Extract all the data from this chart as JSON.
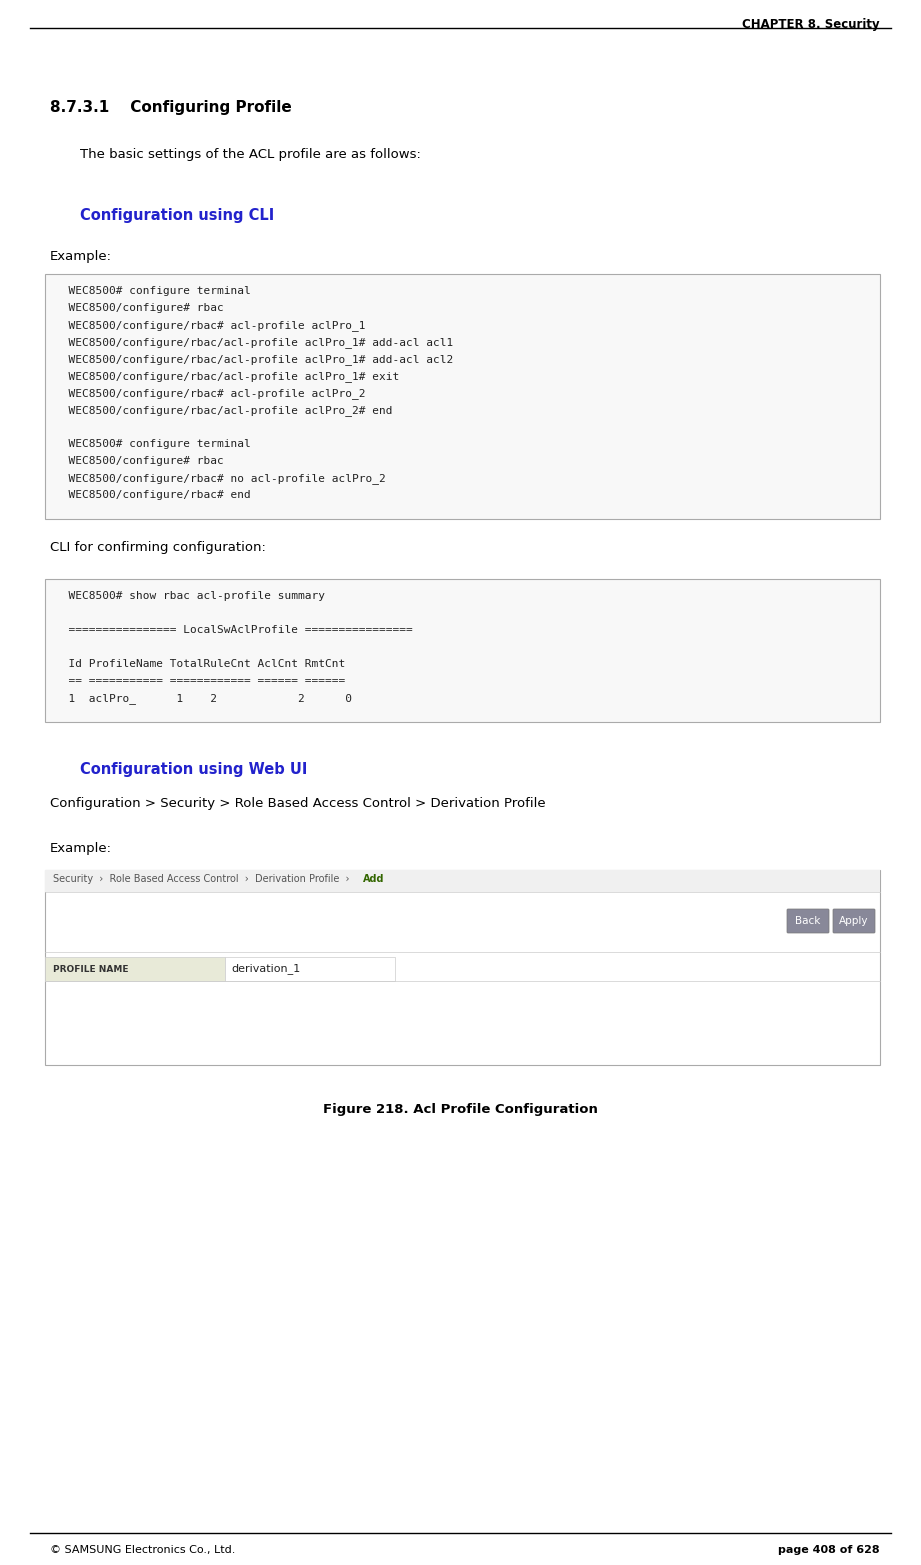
{
  "bg_color": "#ffffff",
  "header_text": "CHAPTER 8. Security",
  "footer_left": "© SAMSUNG Electronics Co., Ltd.",
  "footer_right": "page 408 of 628",
  "section_title": "8.7.3.1    Configuring Profile",
  "section_body": "The basic settings of the ACL profile are as follows:",
  "cli_heading": "Configuration using CLI",
  "cli_heading_color": "#2222cc",
  "example_label": "Example:",
  "cli_box1_lines": [
    "  WEC8500# configure terminal",
    "  WEC8500/configure# rbac",
    "  WEC8500/configure/rbac# acl-profile aclPro_1",
    "  WEC8500/configure/rbac/acl-profile aclPro_1# add-acl acl1",
    "  WEC8500/configure/rbac/acl-profile aclPro_1# add-acl acl2",
    "  WEC8500/configure/rbac/acl-profile aclPro_1# exit",
    "  WEC8500/configure/rbac# acl-profile aclPro_2",
    "  WEC8500/configure/rbac/acl-profile aclPro_2# end",
    "",
    "  WEC8500# configure terminal",
    "  WEC8500/configure# rbac",
    "  WEC8500/configure/rbac# no acl-profile aclPro_2",
    "  WEC8500/configure/rbac# end"
  ],
  "cli_confirm_label": "CLI for confirming configuration:",
  "cli_box2_lines": [
    "  WEC8500# show rbac acl-profile summary",
    "",
    "  ================ LocalSwAclProfile ================",
    "",
    "  Id ProfileName TotalRuleCnt AclCnt RmtCnt",
    "  == =========== ============ ====== ======",
    "  1  aclPro_      1    2            2      0"
  ],
  "webui_heading": "Configuration using Web UI",
  "webui_heading_color": "#2222cc",
  "webui_path": "Configuration > Security > Role Based Access Control > Derivation Profile",
  "example2_label": "Example:",
  "back_btn": "Back",
  "apply_btn": "Apply",
  "profile_name_label": "PROFILE NAME",
  "profile_name_value": "derivation_1",
  "figure_caption": "Figure 218. Acl Profile Configuration",
  "box_bg": "#f8f8f8",
  "box_border": "#aaaaaa",
  "nav_bg": "#f0f0f0",
  "nav_border": "#cccccc",
  "nav_link_color": "#336600",
  "btn_bg": "#888899",
  "plabel_bg": "#e8ead8",
  "pval_bg": "#ffffff"
}
